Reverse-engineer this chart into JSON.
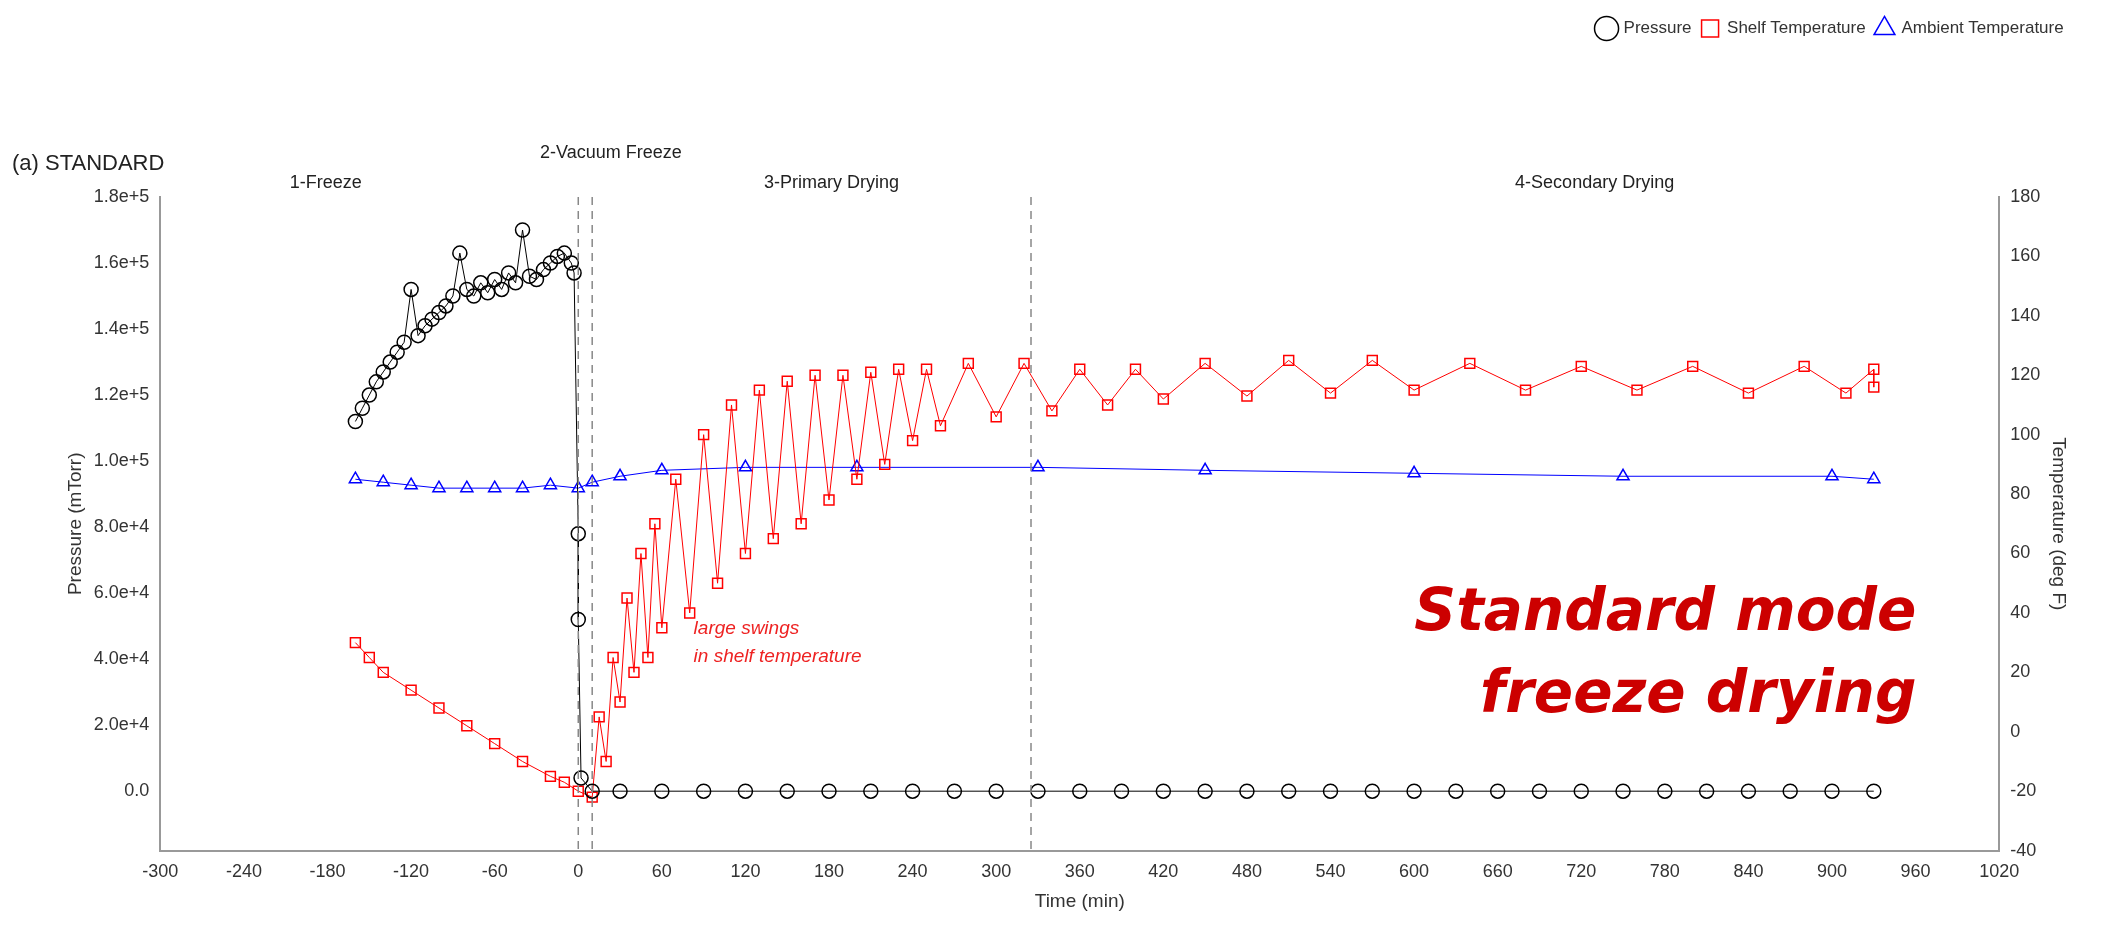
{
  "chart_data": {
    "type": "line",
    "title": "(a) STANDARD",
    "xlabel": "Time (min)",
    "ylabel": "Pressure (mTorr)",
    "y2label": "Temperature (deg F)",
    "xlim": [
      -300,
      1020
    ],
    "xticks": [
      -300,
      -240,
      -180,
      -120,
      -60,
      0,
      60,
      120,
      180,
      240,
      300,
      360,
      420,
      480,
      540,
      600,
      660,
      720,
      780,
      840,
      900,
      960,
      1020
    ],
    "ylim": [
      -18000,
      180000
    ],
    "yticks": [
      {
        "value": 0,
        "label": "0.0"
      },
      {
        "value": 20000,
        "label": "2.0e+4"
      },
      {
        "value": 40000,
        "label": "4.0e+4"
      },
      {
        "value": 60000,
        "label": "6.0e+4"
      },
      {
        "value": 80000,
        "label": "8.0e+4"
      },
      {
        "value": 100000,
        "label": "1.0e+5"
      },
      {
        "value": 120000,
        "label": "1.2e+5"
      },
      {
        "value": 140000,
        "label": "1.4e+5"
      },
      {
        "value": 160000,
        "label": "1.6e+5"
      },
      {
        "value": 180000,
        "label": "1.8e+5"
      }
    ],
    "y2lim": [
      -40,
      180
    ],
    "y2ticks": [
      -40,
      -20,
      0,
      20,
      40,
      60,
      80,
      100,
      120,
      140,
      160,
      180
    ],
    "grid": false,
    "legend": "top right",
    "line_style": "solid",
    "ref_lines": [
      {
        "axis": "x",
        "value": 0,
        "line_style": "dashed",
        "color": "#888888"
      },
      {
        "axis": "x",
        "value": 10,
        "line_style": "dashed",
        "color": "#888888"
      },
      {
        "axis": "x",
        "value": 325,
        "line_style": "dashed",
        "color": "#888888"
      }
    ],
    "annotations": [
      "1-Freeze",
      "2-Vacuum Freeze",
      "3-Primary Drying",
      "4-Secondary Drying",
      "large swings\nin shelf temperature",
      "Standard mode\nfreeze drying"
    ],
    "series": [
      {
        "name": "Pressure",
        "color": "#000000",
        "marker": "circle",
        "x": [
          -160,
          -155,
          -150,
          -145,
          -140,
          -135,
          -130,
          -125,
          -120,
          -115,
          -110,
          -105,
          -100,
          -95,
          -90,
          -85,
          -80,
          -75,
          -70,
          -65,
          -60,
          -55,
          -50,
          -45,
          -40,
          -35,
          -30,
          -25,
          -20,
          -15,
          -10,
          -5,
          -3,
          0,
          0,
          2,
          10,
          30,
          60,
          90,
          120,
          150,
          180,
          210,
          240,
          270,
          300,
          330,
          360,
          390,
          420,
          450,
          480,
          510,
          540,
          570,
          600,
          630,
          660,
          690,
          720,
          750,
          780,
          810,
          840,
          870,
          900,
          930
        ],
        "values": [
          112000,
          116000,
          120000,
          124000,
          127000,
          130000,
          133000,
          136000,
          152000,
          138000,
          141000,
          143000,
          145000,
          147000,
          150000,
          163000,
          152000,
          150000,
          154000,
          151000,
          155000,
          152000,
          157000,
          154000,
          170000,
          156000,
          155000,
          158000,
          160000,
          162000,
          163000,
          160000,
          157000,
          78000,
          52000,
          4000,
          0,
          0,
          0,
          0,
          0,
          0,
          0,
          0,
          0,
          0,
          0,
          0,
          0,
          0,
          0,
          0,
          0,
          0,
          0,
          0,
          0,
          0,
          0,
          0,
          0,
          0,
          0,
          0,
          0,
          0,
          0,
          0
        ]
      },
      {
        "name": "Shelf Temperature",
        "color": "#ff0000",
        "marker": "square",
        "axis": "y2",
        "x": [
          -160,
          -150,
          -140,
          -120,
          -100,
          -80,
          -60,
          -40,
          -20,
          -10,
          0,
          10,
          15,
          20,
          25,
          30,
          35,
          40,
          45,
          50,
          55,
          60,
          70,
          80,
          90,
          100,
          110,
          120,
          130,
          140,
          150,
          160,
          170,
          180,
          190,
          200,
          210,
          220,
          230,
          240,
          250,
          260,
          280,
          300,
          320,
          340,
          360,
          380,
          400,
          420,
          450,
          480,
          510,
          540,
          570,
          600,
          640,
          680,
          720,
          760,
          800,
          840,
          880,
          910,
          930,
          930
        ],
        "values": [
          30,
          25,
          20,
          14,
          8,
          2,
          -4,
          -10,
          -15,
          -17,
          -20,
          -22,
          5,
          -10,
          25,
          10,
          45,
          20,
          60,
          25,
          70,
          35,
          85,
          40,
          100,
          50,
          110,
          60,
          115,
          65,
          118,
          70,
          120,
          78,
          120,
          85,
          121,
          90,
          122,
          98,
          122,
          103,
          124,
          106,
          124,
          108,
          122,
          110,
          122,
          112,
          124,
          113,
          125,
          114,
          125,
          115,
          124,
          115,
          123,
          115,
          123,
          114,
          123,
          114,
          122,
          116
        ]
      },
      {
        "name": "Ambient Temperature",
        "color": "#0000ff",
        "marker": "triangle",
        "axis": "y2",
        "x": [
          -160,
          -140,
          -120,
          -100,
          -80,
          -60,
          -40,
          -20,
          0,
          10,
          30,
          60,
          120,
          200,
          330,
          450,
          600,
          750,
          900,
          930
        ],
        "values": [
          85,
          84,
          83,
          82,
          82,
          82,
          82,
          83,
          82,
          84,
          86,
          88,
          89,
          89,
          89,
          88,
          87,
          86,
          86,
          85
        ]
      }
    ]
  }
}
